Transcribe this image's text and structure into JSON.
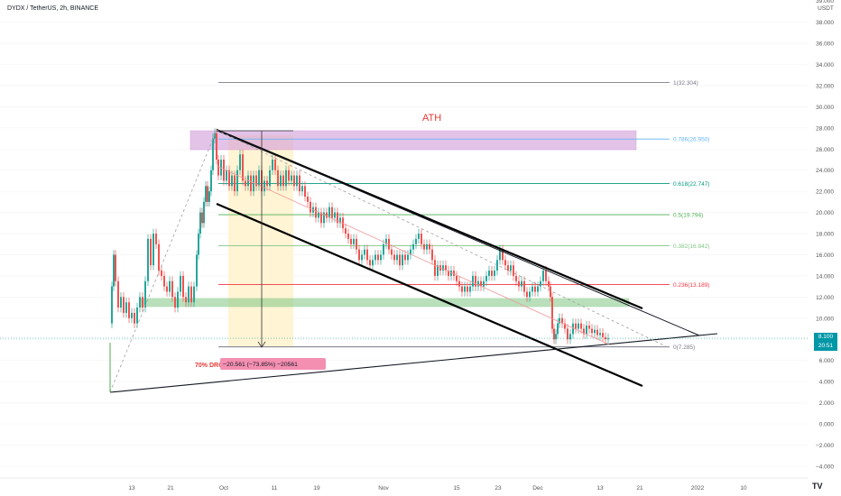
{
  "title": "DYDX / TetherUS, 2h, BINANCE",
  "currency": "USDT",
  "last_price": "8.100",
  "countdown": "20:51",
  "ath_label": "ATH",
  "drop_label": "70% DROP",
  "drop_measure": "−20.561 (−73.85%) −20561",
  "tv_logo": "TV",
  "colors": {
    "up": "#26a69a",
    "down": "#ef5350",
    "ath_box": "#ce93d8",
    "support_box": "#81c784",
    "range_box": "#fff3cf",
    "drop_label": "#e53935",
    "drop_badge": "#f48fb1"
  },
  "chart_data": {
    "type": "candlestick",
    "y_axis": {
      "ticks": [
        -4,
        -2,
        0,
        2,
        4,
        6,
        8,
        10,
        12,
        14,
        16,
        18,
        20,
        22,
        24,
        26,
        28,
        30,
        32,
        34,
        36,
        38
      ],
      "tick_labels": [
        "−4.000",
        "−2.000",
        "0.000",
        "2.000",
        "4.000",
        "6.000",
        "8.000",
        "10.000",
        "12.000",
        "14.000",
        "16.000",
        "18.000",
        "20.000",
        "22.000",
        "24.000",
        "26.000",
        "28.000",
        "30.000",
        "32.000",
        "34.000",
        "36.000",
        "38.000"
      ],
      "top_partial_label": "39.000",
      "range": [
        -4.5,
        39.5
      ]
    },
    "x_axis": {
      "tick_labels": [
        "13",
        "21",
        "Oct",
        "11",
        "19",
        "Nov",
        "15",
        "23",
        "Dec",
        "13",
        "21",
        "2022",
        "10"
      ]
    },
    "fib_levels": [
      {
        "label": "1(32.304)",
        "value": 32.304,
        "color": "#787b86"
      },
      {
        "label": "0.786(26.950)",
        "value": 26.95,
        "color": "#64b5f6"
      },
      {
        "label": "0.618(22.747)",
        "value": 22.747,
        "color": "#089981"
      },
      {
        "label": "0.5(19.794)",
        "value": 19.794,
        "color": "#4caf50"
      },
      {
        "label": "0.382(16.842)",
        "value": 16.842,
        "color": "#81c784"
      },
      {
        "label": "0.236(13.189)",
        "value": 13.189,
        "color": "#f23645"
      },
      {
        "label": "0(7.285)",
        "value": 7.285,
        "color": "#787b86"
      }
    ],
    "price_path": [
      [
        122,
        9.5
      ],
      [
        124,
        13
      ],
      [
        126,
        16
      ],
      [
        128,
        13.5
      ],
      [
        131,
        11
      ],
      [
        134,
        12
      ],
      [
        137,
        10.5
      ],
      [
        140,
        11.5
      ],
      [
        143,
        10
      ],
      [
        146,
        10.5
      ],
      [
        149,
        9.5
      ],
      [
        152,
        11
      ],
      [
        155,
        12
      ],
      [
        158,
        11
      ],
      [
        161,
        13.5
      ],
      [
        164,
        17.5
      ],
      [
        167,
        15
      ],
      [
        170,
        18
      ],
      [
        173,
        17
      ],
      [
        176,
        14.5
      ],
      [
        179,
        14
      ],
      [
        182,
        13
      ],
      [
        185,
        12.5
      ],
      [
        188,
        13.5
      ],
      [
        191,
        12
      ],
      [
        194,
        11
      ],
      [
        197,
        12.5
      ],
      [
        200,
        14
      ],
      [
        203,
        12
      ],
      [
        206,
        11.5
      ],
      [
        209,
        13
      ],
      [
        212,
        11.5
      ],
      [
        215,
        13
      ],
      [
        218,
        16
      ],
      [
        220,
        18
      ],
      [
        222,
        20
      ],
      [
        224,
        19
      ],
      [
        226,
        21
      ],
      [
        228,
        22.5
      ],
      [
        230,
        21
      ],
      [
        232,
        22
      ],
      [
        234,
        24
      ],
      [
        236,
        27
      ],
      [
        238,
        27.5
      ],
      [
        240,
        25
      ],
      [
        242,
        23.5
      ],
      [
        245,
        25
      ],
      [
        248,
        23
      ],
      [
        251,
        24
      ],
      [
        254,
        22.5
      ],
      [
        257,
        23.5
      ],
      [
        260,
        22
      ],
      [
        263,
        24
      ],
      [
        266,
        25.5
      ],
      [
        269,
        23
      ],
      [
        272,
        22.5
      ],
      [
        275,
        23.5
      ],
      [
        278,
        22
      ],
      [
        281,
        23.5
      ],
      [
        284,
        22.5
      ],
      [
        287,
        24
      ],
      [
        290,
        22
      ],
      [
        293,
        23
      ],
      [
        296,
        22.5
      ],
      [
        299,
        24
      ],
      [
        302,
        25
      ],
      [
        305,
        24
      ],
      [
        308,
        22.5
      ],
      [
        311,
        23.5
      ],
      [
        314,
        22.5
      ],
      [
        317,
        24
      ],
      [
        320,
        23
      ],
      [
        323,
        23.5
      ],
      [
        326,
        22.5
      ],
      [
        329,
        23.5
      ],
      [
        332,
        22
      ],
      [
        335,
        22.5
      ],
      [
        338,
        21.5
      ],
      [
        341,
        21
      ],
      [
        344,
        20
      ],
      [
        347,
        20.5
      ],
      [
        350,
        19.5
      ],
      [
        353,
        20
      ],
      [
        356,
        19
      ],
      [
        359,
        20
      ],
      [
        362,
        19.5
      ],
      [
        365,
        20.5
      ],
      [
        368,
        19.5
      ],
      [
        371,
        20
      ],
      [
        374,
        19
      ],
      [
        377,
        19.5
      ],
      [
        380,
        18.5
      ],
      [
        383,
        18
      ],
      [
        386,
        17.5
      ],
      [
        389,
        17
      ],
      [
        392,
        17.5
      ],
      [
        395,
        16.5
      ],
      [
        398,
        15.5
      ],
      [
        401,
        16
      ],
      [
        404,
        16.5
      ],
      [
        407,
        15.5
      ],
      [
        410,
        15
      ],
      [
        413,
        15.5
      ],
      [
        416,
        16
      ],
      [
        419,
        15.5
      ],
      [
        422,
        16
      ],
      [
        425,
        17
      ],
      [
        428,
        17.5
      ],
      [
        431,
        16.5
      ],
      [
        434,
        16
      ],
      [
        437,
        15.5
      ],
      [
        440,
        16
      ],
      [
        443,
        15
      ],
      [
        446,
        16
      ],
      [
        449,
        15.5
      ],
      [
        452,
        16
      ],
      [
        455,
        16.5
      ],
      [
        458,
        17
      ],
      [
        461,
        17.5
      ],
      [
        464,
        18
      ],
      [
        467,
        17
      ],
      [
        470,
        16.5
      ],
      [
        473,
        17
      ],
      [
        476,
        16.5
      ],
      [
        479,
        15.5
      ],
      [
        482,
        14
      ],
      [
        485,
        15
      ],
      [
        488,
        14.5
      ],
      [
        491,
        15
      ],
      [
        494,
        14.5
      ],
      [
        497,
        14
      ],
      [
        500,
        14.5
      ],
      [
        503,
        14
      ],
      [
        506,
        13.5
      ],
      [
        509,
        13
      ],
      [
        512,
        12.5
      ],
      [
        515,
        13
      ],
      [
        518,
        12.5
      ],
      [
        521,
        13
      ],
      [
        524,
        14
      ],
      [
        527,
        13
      ],
      [
        530,
        13.5
      ],
      [
        533,
        13
      ],
      [
        536,
        13.5
      ],
      [
        539,
        14
      ],
      [
        542,
        14.5
      ],
      [
        545,
        14
      ],
      [
        548,
        14.5
      ],
      [
        551,
        15.5
      ],
      [
        554,
        16.5
      ],
      [
        557,
        15.5
      ],
      [
        560,
        15
      ],
      [
        563,
        14.5
      ],
      [
        566,
        15
      ],
      [
        569,
        14
      ],
      [
        572,
        13.5
      ],
      [
        575,
        13
      ],
      [
        578,
        13.5
      ],
      [
        581,
        12.5
      ],
      [
        584,
        12
      ],
      [
        587,
        12.5
      ],
      [
        590,
        13
      ],
      [
        593,
        12.5
      ],
      [
        596,
        13
      ],
      [
        599,
        13.5
      ],
      [
        602,
        14.5
      ],
      [
        605,
        13.5
      ],
      [
        608,
        13
      ],
      [
        610,
        12
      ],
      [
        612,
        9
      ],
      [
        614,
        8
      ],
      [
        616,
        8.5
      ],
      [
        618,
        9.5
      ],
      [
        620,
        10
      ],
      [
        623,
        9.5
      ],
      [
        626,
        9
      ],
      [
        629,
        8
      ],
      [
        632,
        8.5
      ],
      [
        635,
        9.5
      ],
      [
        638,
        9
      ],
      [
        641,
        9.5
      ],
      [
        644,
        9
      ],
      [
        647,
        8.5
      ],
      [
        650,
        9.3
      ],
      [
        653,
        9
      ],
      [
        656,
        8.6
      ],
      [
        659,
        8.9
      ],
      [
        662,
        8.4
      ],
      [
        665,
        8.6
      ],
      [
        668,
        8.2
      ],
      [
        671,
        8.0
      ],
      [
        674,
        8.1
      ]
    ],
    "trend_lines": [
      {
        "name": "upper-channel",
        "from": [
          "2021-09-29",
          28.0
        ],
        "to": [
          "2021-12-17",
          10.8
        ]
      },
      {
        "name": "lower-channel",
        "from": [
          "2021-09-29",
          20.8
        ],
        "to": [
          "2021-12-17",
          3.6
        ]
      },
      {
        "name": "rising-support",
        "from": [
          "2021-09-05",
          3.0
        ],
        "to": [
          "2021-12-23",
          8.7
        ]
      }
    ]
  }
}
